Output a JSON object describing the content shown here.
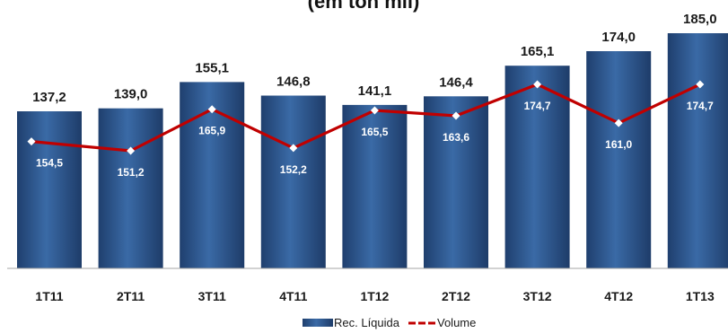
{
  "chart_data": {
    "type": "bar",
    "title": "(em ton mil)",
    "xlabel": "",
    "ylabel": "",
    "categories": [
      "1T11",
      "2T11",
      "3T11",
      "4T11",
      "1T12",
      "2T12",
      "3T12",
      "4T12",
      "1T13"
    ],
    "series": [
      {
        "name": "Rec. Líquida",
        "type": "bar",
        "values": [
          137.2,
          139.0,
          155.1,
          146.8,
          141.1,
          146.4,
          165.1,
          174.0,
          185.0
        ],
        "labels": [
          "137,2",
          "139,0",
          "155,1",
          "146,8",
          "141,1",
          "146,4",
          "165,1",
          "174,0",
          "185,0"
        ],
        "color": "#2e5a93"
      },
      {
        "name": "Volume",
        "type": "line",
        "values": [
          154.5,
          151.2,
          165.9,
          152.2,
          165.5,
          163.6,
          174.7,
          161.0,
          174.7
        ],
        "labels": [
          "154,5",
          "151,2",
          "165,9",
          "152,2",
          "165,5",
          "163,6",
          "174,7",
          "161,0",
          "174,7"
        ],
        "color": "#c00000",
        "marker_color": "#ffffff"
      }
    ],
    "grid": false,
    "legend": "bottom-center"
  }
}
